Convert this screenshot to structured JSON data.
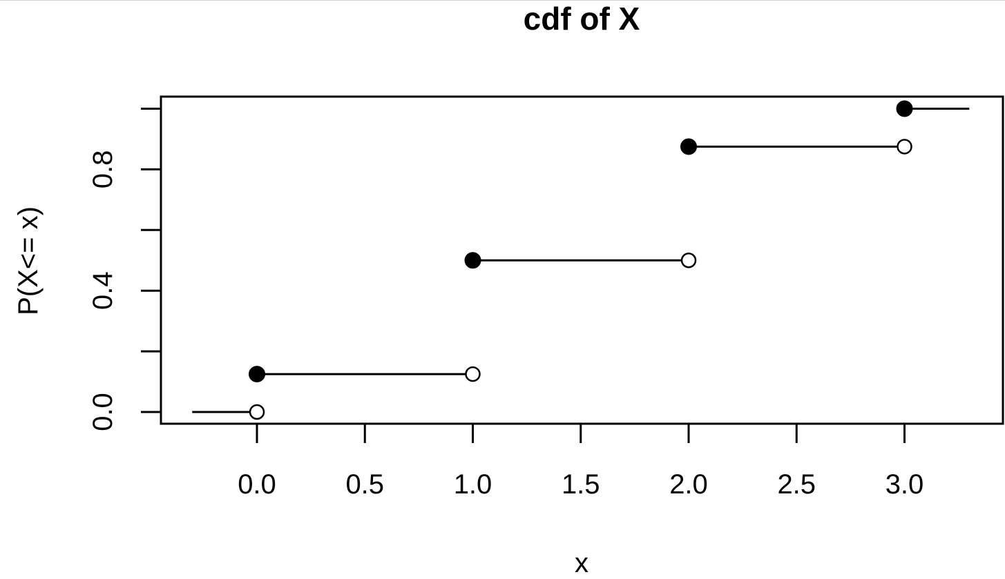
{
  "chart_data": {
    "type": "line",
    "title": "cdf of X",
    "xlabel": "x",
    "ylabel": "P(X<= x)",
    "xlim": [
      -0.45,
      3.45
    ],
    "ylim": [
      -0.04,
      1.04
    ],
    "x_ticks": [
      0.0,
      0.5,
      1.0,
      1.5,
      2.0,
      2.5,
      3.0
    ],
    "x_tick_labels": [
      "0.0",
      "0.5",
      "1.0",
      "1.5",
      "2.0",
      "2.5",
      "3.0"
    ],
    "y_ticks": [
      0.0,
      0.2,
      0.4,
      0.6,
      0.8,
      1.0
    ],
    "y_tick_labels": [
      "0.0",
      "",
      "0.4",
      "",
      "0.8",
      ""
    ],
    "segments": [
      {
        "x_start": -0.3,
        "x_end": 0.0,
        "y": 0.0,
        "closed_start": false,
        "open_end": true
      },
      {
        "x_start": 0.0,
        "x_end": 1.0,
        "y": 0.125,
        "closed_start": true,
        "open_end": true
      },
      {
        "x_start": 1.0,
        "x_end": 2.0,
        "y": 0.5,
        "closed_start": true,
        "open_end": true
      },
      {
        "x_start": 2.0,
        "x_end": 3.0,
        "y": 0.875,
        "closed_start": true,
        "open_end": true
      },
      {
        "x_start": 3.0,
        "x_end": 3.3,
        "y": 1.0,
        "closed_start": true,
        "open_end": false
      }
    ],
    "grid": false,
    "line_color": "#000000"
  }
}
